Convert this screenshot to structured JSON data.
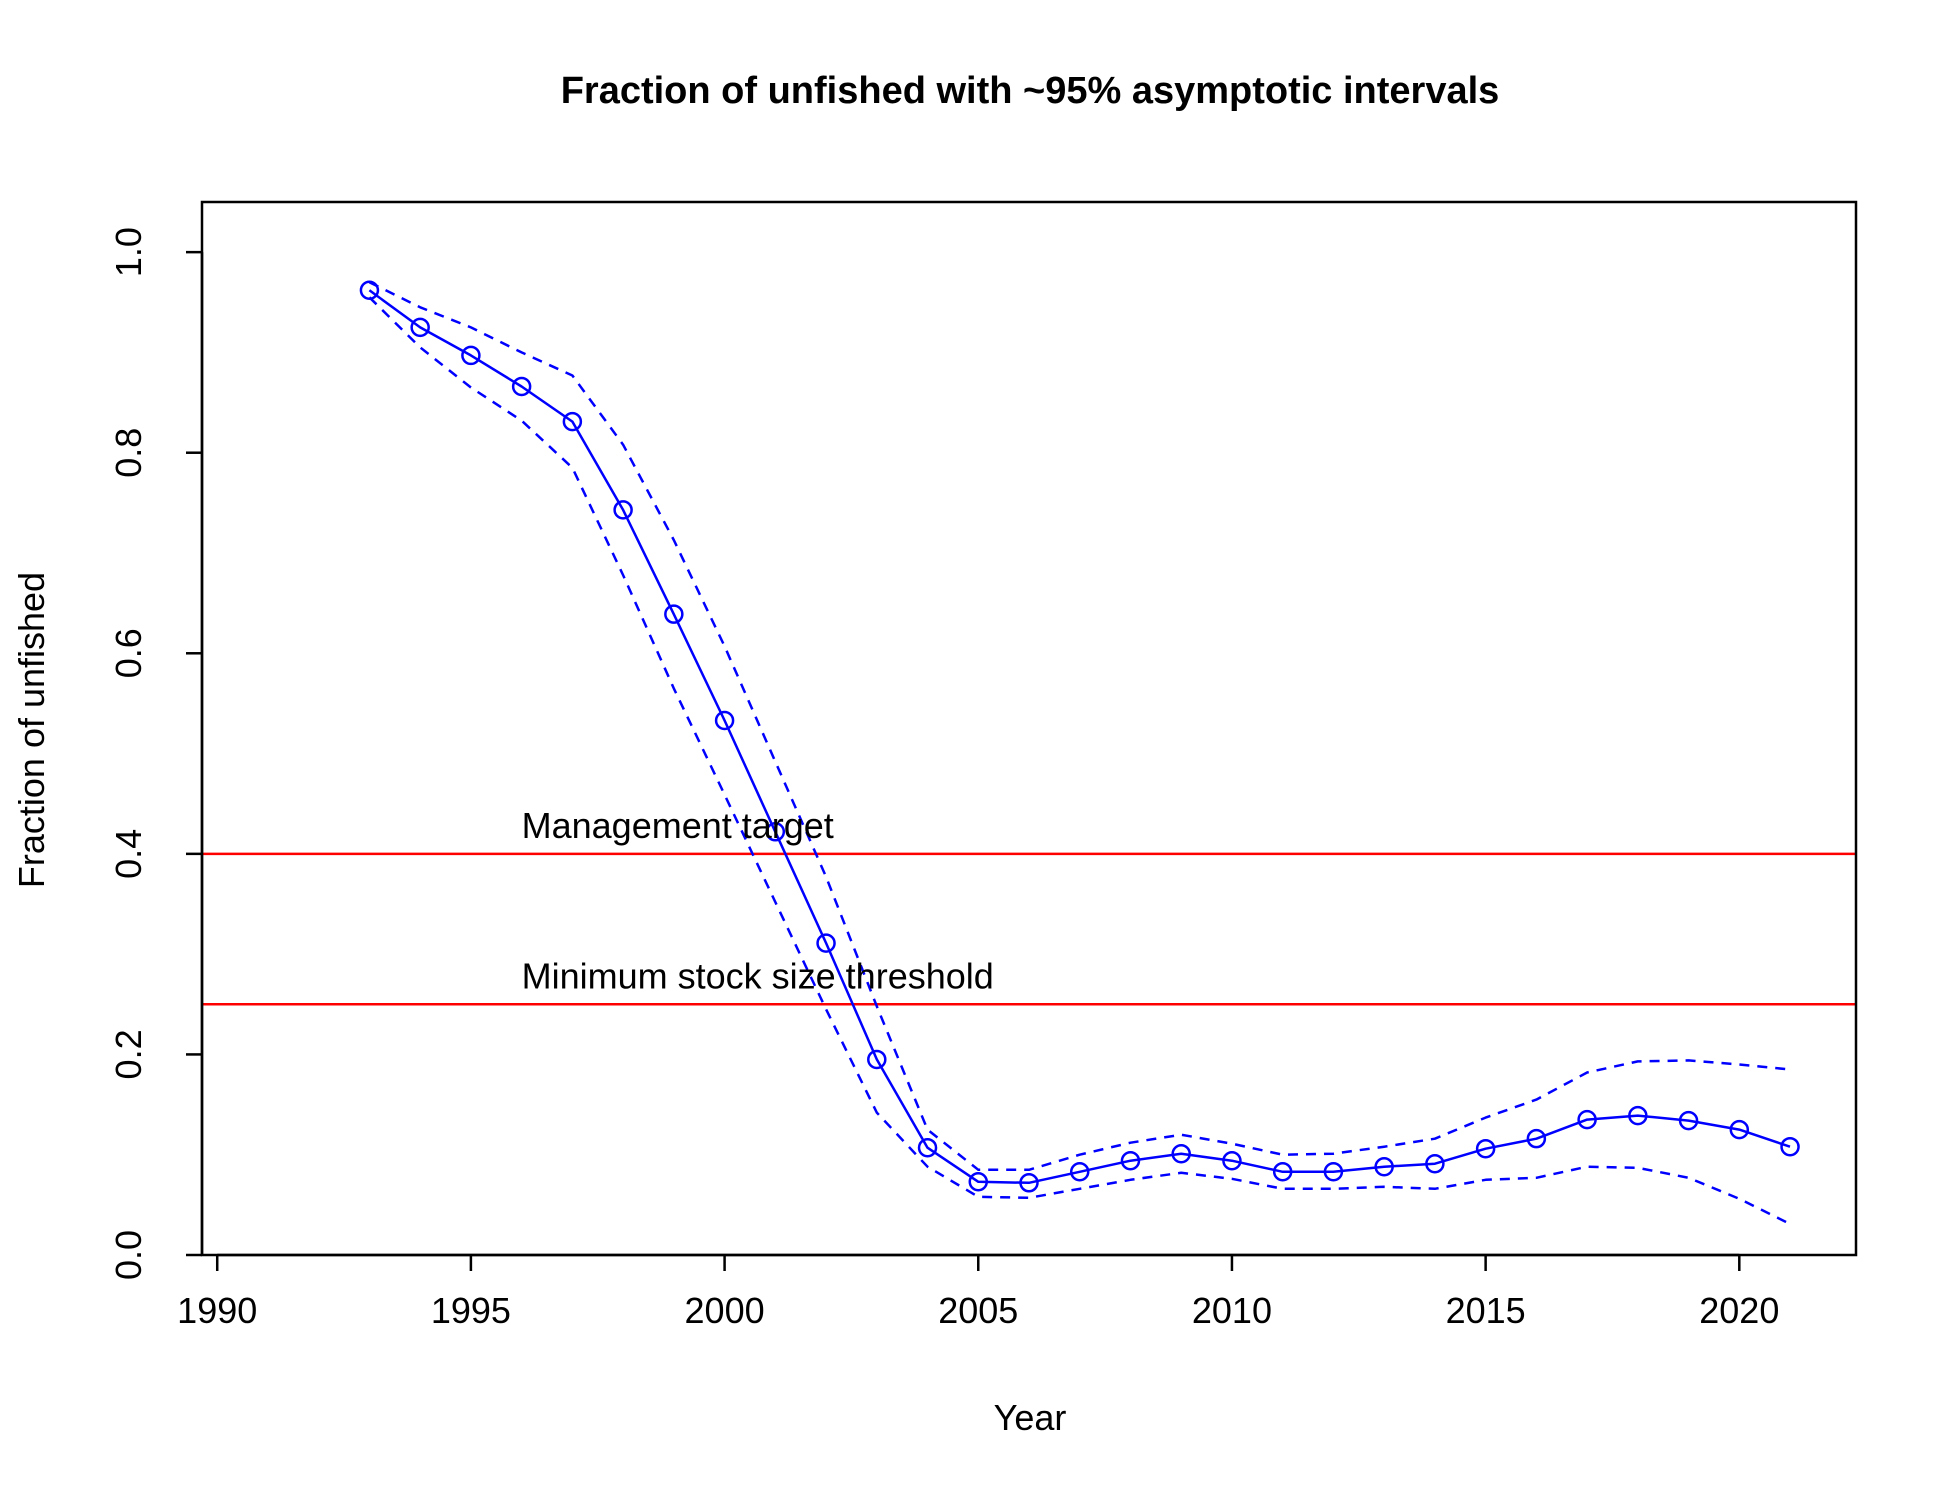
{
  "chart_data": {
    "type": "line",
    "title": "Fraction of unfished with ~95% asymptotic intervals",
    "xlabel": "Year",
    "ylabel": "Fraction of unfished",
    "xlim": [
      1989.7,
      2022.3
    ],
    "ylim": [
      0,
      1.05
    ],
    "xticks": [
      1990,
      1995,
      2000,
      2005,
      2010,
      2015,
      2020
    ],
    "yticks": [
      "0.0",
      "0.2",
      "0.4",
      "0.6",
      "0.8",
      "1.0"
    ],
    "grid": false,
    "colors": {
      "series": "#0000ff",
      "reference": "#ff0000"
    },
    "x": [
      1993,
      1994,
      1995,
      1996,
      1997,
      1998,
      1999,
      2000,
      2001,
      2002,
      2003,
      2004,
      2005,
      2006,
      2007,
      2008,
      2009,
      2010,
      2011,
      2012,
      2013,
      2014,
      2015,
      2016,
      2017,
      2018,
      2019,
      2020,
      2021
    ],
    "series": [
      {
        "style": "solid-with-circles",
        "values": [
          0.962,
          0.925,
          0.897,
          0.866,
          0.831,
          0.743,
          0.639,
          0.533,
          0.422,
          0.311,
          0.195,
          0.107,
          0.073,
          0.072,
          0.083,
          0.094,
          0.101,
          0.094,
          0.083,
          0.083,
          0.088,
          0.091,
          0.106,
          0.116,
          0.135,
          0.139,
          0.134,
          0.125,
          0.108
        ]
      },
      {
        "style": "dashed",
        "values": [
          0.97,
          0.945,
          0.925,
          0.9,
          0.877,
          0.808,
          0.713,
          0.607,
          0.492,
          0.377,
          0.248,
          0.125,
          0.085,
          0.085,
          0.1,
          0.112,
          0.12,
          0.111,
          0.1,
          0.101,
          0.108,
          0.116,
          0.137,
          0.155,
          0.182,
          0.193,
          0.194,
          0.19,
          0.185
        ]
      },
      {
        "style": "dashed",
        "values": [
          0.955,
          0.905,
          0.865,
          0.832,
          0.785,
          0.678,
          0.565,
          0.459,
          0.352,
          0.245,
          0.142,
          0.088,
          0.058,
          0.057,
          0.066,
          0.075,
          0.082,
          0.076,
          0.066,
          0.066,
          0.068,
          0.066,
          0.075,
          0.077,
          0.088,
          0.087,
          0.077,
          0.056,
          0.031
        ]
      }
    ],
    "reference_lines": [
      {
        "y": 0.4,
        "label": "Management target"
      },
      {
        "y": 0.25,
        "label": "Minimum stock size threshold"
      }
    ]
  }
}
